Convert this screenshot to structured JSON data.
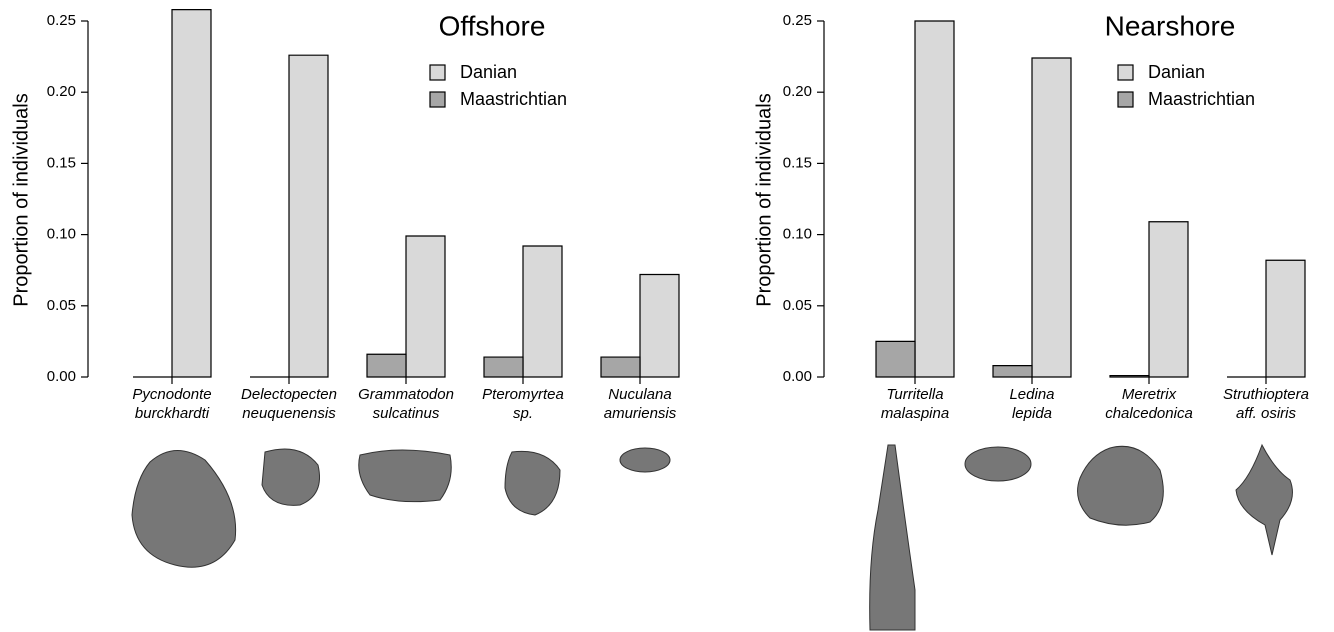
{
  "chart_data": [
    {
      "type": "bar",
      "title": "Offshore",
      "ylabel": "Proportion of individuals",
      "categories": [
        [
          "Pycnodonte",
          "burckhardti"
        ],
        [
          "Delectopecten",
          "neuquenensis"
        ],
        [
          "Grammatodon",
          "sulcatinus"
        ],
        [
          "Pteromyrtea",
          "sp."
        ],
        [
          "Nuculana",
          "amuriensis"
        ]
      ],
      "series": [
        {
          "name": "Danian",
          "color": "#d9d9d9",
          "values": [
            0.258,
            0.226,
            0.099,
            0.092,
            0.072
          ]
        },
        {
          "name": "Maastrichtian",
          "color": "#a6a6a6",
          "values": [
            0,
            0,
            0.016,
            0.014,
            0.014
          ]
        }
      ],
      "ylim": [
        0,
        0.25
      ],
      "yticks": [
        {
          "value": 0,
          "label": "0.00"
        },
        0.05,
        {
          "value": 0.1,
          "label": "0.10"
        },
        0.15,
        {
          "value": 0.2,
          "label": "0.20"
        },
        0.25
      ]
    },
    {
      "type": "bar",
      "title": "Nearshore",
      "ylabel": "Proportion of individuals",
      "categories": [
        [
          "Turritella",
          "malaspina"
        ],
        [
          "Ledina",
          "lepida"
        ],
        [
          "Meretrix",
          "chalcedonica"
        ],
        [
          "Struthioptera",
          "aff. osiris"
        ]
      ],
      "series": [
        {
          "name": "Danian",
          "color": "#d9d9d9",
          "values": [
            0.25,
            0.224,
            0.109,
            0.082
          ]
        },
        {
          "name": "Maastrichtian",
          "color": "#a6a6a6",
          "values": [
            0.025,
            0.008,
            0.001,
            0
          ]
        }
      ],
      "ylim": [
        0,
        0.25
      ],
      "yticks": [
        {
          "value": 0,
          "label": "0.00"
        },
        0.05,
        {
          "value": 0.1,
          "label": "0.10"
        },
        0.15,
        {
          "value": 0.2,
          "label": "0.20"
        },
        0.25
      ]
    }
  ]
}
